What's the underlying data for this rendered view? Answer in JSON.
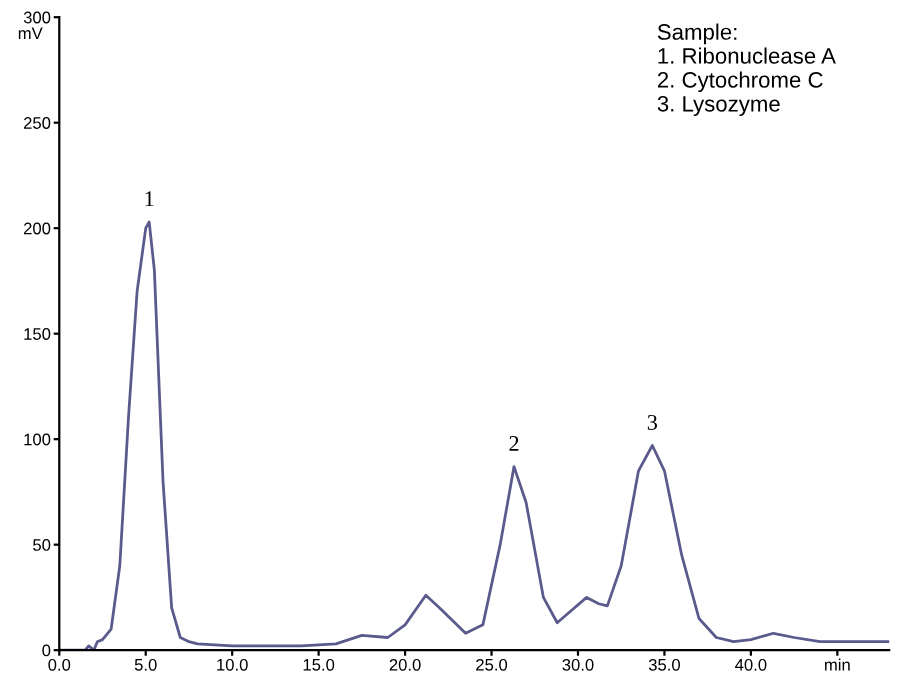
{
  "chart_data": {
    "type": "line",
    "ylabel": "mV",
    "xlim": [
      0,
      48
    ],
    "ylim": [
      0,
      300
    ],
    "xticks": [
      {
        "value": 0,
        "label": "0.0"
      },
      {
        "value": 5,
        "label": "5.0"
      },
      {
        "value": 10,
        "label": "10.0"
      },
      {
        "value": 15,
        "label": "15.0"
      },
      {
        "value": 20,
        "label": "20.0"
      },
      {
        "value": 25,
        "label": "25.0"
      },
      {
        "value": 30,
        "label": "30.0"
      },
      {
        "value": 35,
        "label": "35.0"
      },
      {
        "value": 40,
        "label": "40.0"
      },
      {
        "value": 45,
        "label": "min"
      }
    ],
    "yticks": [
      0,
      50,
      100,
      {
        "value": 150,
        "label": "150"
      },
      200,
      250,
      300
    ],
    "x": [
      0,
      1.5,
      1.7,
      2.0,
      2.2,
      2.5,
      3.0,
      3.5,
      4.0,
      4.5,
      5.0,
      5.2,
      5.5,
      6.0,
      6.5,
      7.0,
      7.5,
      8,
      10,
      12,
      14,
      16,
      17.5,
      19,
      20,
      21.2,
      22,
      23.5,
      24.5,
      25.5,
      26.3,
      27,
      28,
      28.8,
      29.5,
      30.5,
      31.2,
      31.7,
      32.5,
      33.5,
      34.3,
      35,
      36,
      37,
      38,
      39,
      40,
      41.3,
      42.5,
      44,
      46,
      48
    ],
    "series": [
      {
        "color": "#5a5a8c",
        "values": [
          0,
          0,
          2,
          0,
          4,
          5,
          10,
          40,
          110,
          170,
          200,
          203,
          180,
          80,
          20,
          6,
          4,
          3,
          2,
          2,
          2,
          3,
          7,
          6,
          12,
          26,
          20,
          8,
          12,
          50,
          87,
          70,
          25,
          13,
          18,
          25,
          22,
          21,
          40,
          85,
          97,
          85,
          45,
          15,
          6,
          4,
          5,
          8,
          6,
          4,
          4,
          4
        ]
      }
    ],
    "annotations": [
      {
        "text": "1",
        "x": 5.2,
        "y": 203
      },
      {
        "text": "2",
        "x": 26.3,
        "y": 87
      },
      {
        "text": "3",
        "x": 34.3,
        "y": 97
      },
      "Sample:\n1. Ribonuclease A\n2. Cytochrome C\n3. Lysozyme"
    ],
    "grid": false,
    "legend": false,
    "marker": "none",
    "line_style": "solid"
  }
}
